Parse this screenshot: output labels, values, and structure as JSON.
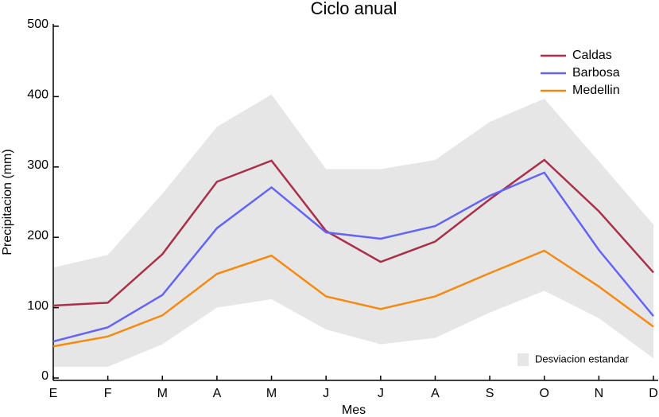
{
  "chart_data": {
    "type": "line",
    "title": "Ciclo anual",
    "xlabel": "Mes",
    "ylabel": "Precipitacion (mm)",
    "categories": [
      "E",
      "F",
      "M",
      "A",
      "M",
      "J",
      "J",
      "A",
      "S",
      "O",
      "N",
      "D"
    ],
    "series": [
      {
        "name": "Caldas",
        "color": "#a8304a",
        "values": [
          103,
          107,
          176,
          279,
          309,
          209,
          165,
          194,
          254,
          310,
          237,
          150
        ]
      },
      {
        "name": "Barbosa",
        "color": "#6464f5",
        "values": [
          52,
          72,
          118,
          213,
          271,
          207,
          198,
          216,
          259,
          292,
          182,
          88
        ]
      },
      {
        "name": "Medellin",
        "color": "#f58a10",
        "values": [
          45,
          59,
          89,
          148,
          174,
          116,
          98,
          116,
          149,
          181,
          130,
          73
        ]
      }
    ],
    "band": {
      "name": "Desviacion estandar",
      "color": "#e6e6e6",
      "upper": [
        157,
        175,
        262,
        357,
        403,
        297,
        297,
        310,
        364,
        397,
        308,
        218
      ],
      "lower": [
        16,
        16,
        48,
        100,
        112,
        69,
        48,
        57,
        93,
        124,
        85,
        28
      ]
    },
    "ylim": [
      0,
      500
    ],
    "yticks": [
      0,
      100,
      200,
      300,
      400,
      500
    ],
    "legend": "upper right"
  }
}
